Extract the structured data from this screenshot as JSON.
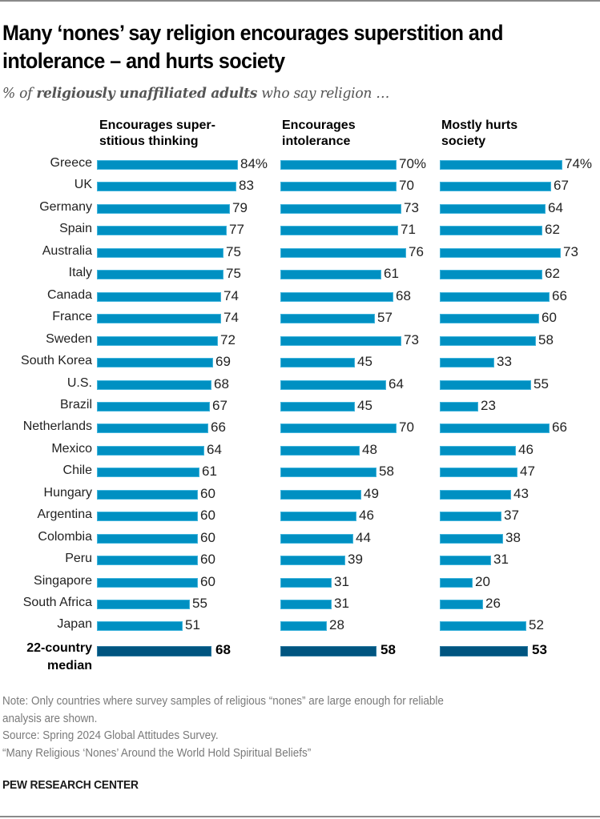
{
  "header": {
    "title_line1": "Many ‘nones’ say religion encourages superstition and",
    "title_line2": "intolerance – and hurts society",
    "subtitle_pre": "% of ",
    "subtitle_bold": "religiously unaffiliated adults",
    "subtitle_post": " who say religion …"
  },
  "colors": {
    "bar": "#0090c2",
    "median_bar": "#005580"
  },
  "chart_data": {
    "type": "bar",
    "orientation": "horizontal",
    "title": "Many ‘nones’ say religion encourages superstition and intolerance – and hurts society",
    "subtitle": "% of religiously unaffiliated adults who say religion …",
    "xlabel": "",
    "ylabel": "",
    "grid": false,
    "xlim": [
      0,
      100
    ],
    "value_suffix_first_row": "%",
    "categories": [
      "Greece",
      "UK",
      "Germany",
      "Spain",
      "Australia",
      "Italy",
      "Canada",
      "France",
      "Sweden",
      "South Korea",
      "U.S.",
      "Brazil",
      "Netherlands",
      "Mexico",
      "Chile",
      "Hungary",
      "Argentina",
      "Colombia",
      "Peru",
      "Singapore",
      "South Africa",
      "Japan"
    ],
    "series": [
      {
        "name": "Encourages super-stitious thinking",
        "header_line1": "Encourages super-",
        "header_line2": "stitious thinking",
        "values": [
          84,
          83,
          79,
          77,
          75,
          75,
          74,
          74,
          72,
          69,
          68,
          67,
          66,
          64,
          61,
          60,
          60,
          60,
          60,
          60,
          55,
          51
        ],
        "median": 68
      },
      {
        "name": "Encourages intolerance",
        "header_line1": "Encourages",
        "header_line2": "intolerance",
        "values": [
          70,
          70,
          73,
          71,
          76,
          61,
          68,
          57,
          73,
          45,
          64,
          45,
          70,
          48,
          58,
          49,
          46,
          44,
          39,
          31,
          31,
          28
        ],
        "median": 58
      },
      {
        "name": "Mostly hurts society",
        "header_line1": "Mostly hurts",
        "header_line2": "society",
        "values": [
          74,
          67,
          64,
          62,
          73,
          62,
          66,
          60,
          58,
          33,
          55,
          23,
          66,
          46,
          47,
          43,
          37,
          38,
          31,
          20,
          26,
          52
        ],
        "median": 53
      }
    ],
    "median_label_line1": "22-country",
    "median_label_line2": "median"
  },
  "footer": {
    "note_line1": "Note: Only countries where survey samples of religious “nones” are large enough for reliable",
    "note_line2": "analysis are shown.",
    "source": "Source: Spring 2024 Global Attitudes Survey.",
    "report": "“Many Religious ‘Nones’ Around the World Hold Spiritual Beliefs”",
    "brand": "PEW RESEARCH CENTER"
  }
}
